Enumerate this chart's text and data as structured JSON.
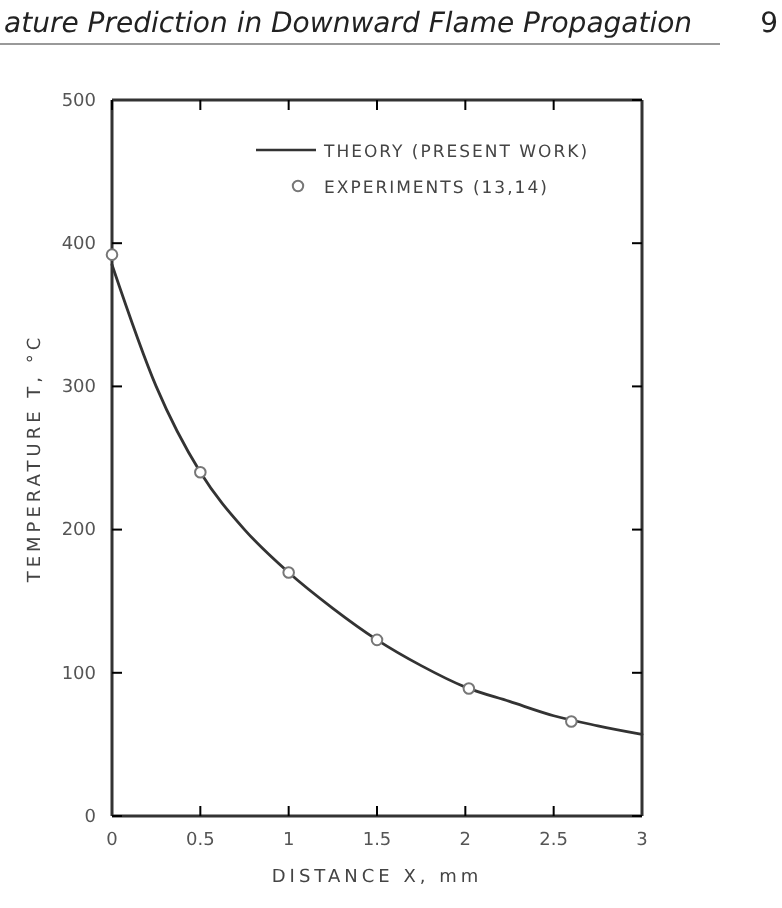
{
  "chart_data": {
    "type": "line",
    "title": "ature Prediction in Downward Flame Propagation",
    "annotations": [
      "9"
    ],
    "xlabel": "DISTANCE X, mm",
    "ylabel": "TEMPERATURE T, °C",
    "xlim": [
      0,
      3
    ],
    "ylim": [
      0,
      500
    ],
    "xticks": [
      0,
      0.5,
      1,
      1.5,
      2,
      2.5,
      3
    ],
    "yticks": [
      0,
      100,
      200,
      300,
      400,
      500
    ],
    "grid": false,
    "legend": "top right",
    "series": [
      {
        "name": "THEORY (PRESENT WORK)",
        "color": "#333333",
        "marker": "none",
        "line_style": "solid",
        "x": [
          0,
          0.25,
          0.5,
          0.75,
          1,
          1.25,
          1.5,
          1.75,
          2,
          2.25,
          2.5,
          2.75,
          3
        ],
        "values": [
          385,
          300,
          240,
          200,
          170,
          145,
          123,
          105,
          90,
          80,
          70,
          63,
          57
        ]
      },
      {
        "name": "EXPERIMENTS (13,14)",
        "type": "scatter",
        "color": "#777777",
        "marker": "circle",
        "x": [
          0,
          0.5,
          1,
          1.5,
          2.02,
          2.6
        ],
        "values": [
          392,
          240,
          170,
          123,
          89,
          66
        ]
      }
    ]
  }
}
